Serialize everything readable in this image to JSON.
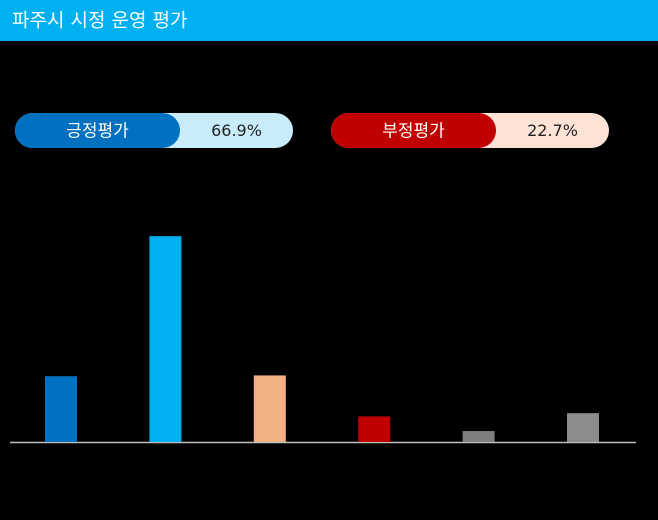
{
  "chart_data": {
    "type": "bar",
    "title": "파주시 시정 운영 평가",
    "categories": [
      null,
      null,
      null,
      null,
      null,
      null
    ],
    "values": [
      16.2,
      50.7,
      16.4,
      6.3,
      2.7,
      7.1
    ],
    "colors": [
      "#0070c0",
      "#00b0f0",
      "#f4b183",
      "#c00000",
      "#7f7f7f",
      "#8c8c8c"
    ]
  },
  "summary": [
    {
      "label": "긍정평가",
      "value": "66.9%",
      "color": "#0070c0",
      "light": "#c9ecfb"
    },
    {
      "label": "부정평가",
      "value": "22.7%",
      "color": "#c00000",
      "light": "#fde3d6"
    }
  ]
}
